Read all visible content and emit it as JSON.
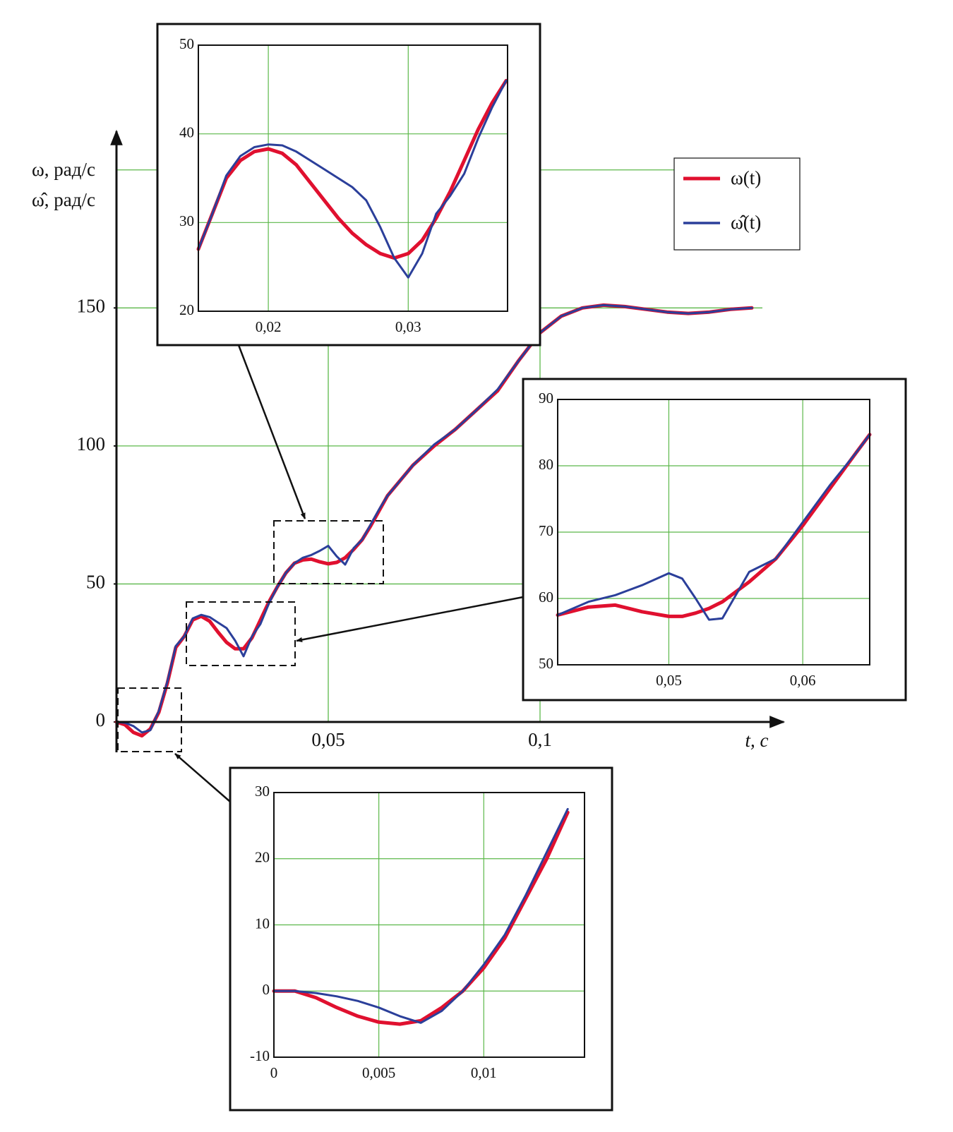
{
  "chart_data": [
    {
      "type": "line",
      "ylabel": [
        "ω, рад/с",
        "ω̂, рад/с"
      ],
      "xlabel": "t, с",
      "xlim": [
        0,
        0.1575
      ],
      "ylim": [
        -11,
        214
      ],
      "xticks": [
        {
          "value": 0.05,
          "label": "0,05"
        },
        {
          "value": 0.1,
          "label": "0,1"
        }
      ],
      "yticks": [
        0,
        50,
        100,
        150
      ],
      "grid_y": [
        50,
        100,
        150,
        200
      ],
      "grid_color": "#5cb84a",
      "legend": "upper right",
      "x": [
        0,
        0.002,
        0.004,
        0.006,
        0.008,
        0.01,
        0.012,
        0.014,
        0.016,
        0.018,
        0.02,
        0.022,
        0.024,
        0.026,
        0.028,
        0.03,
        0.032,
        0.034,
        0.036,
        0.038,
        0.04,
        0.042,
        0.044,
        0.046,
        0.048,
        0.05,
        0.052,
        0.054,
        0.056,
        0.058,
        0.06,
        0.062,
        0.064,
        0.07,
        0.075,
        0.08,
        0.085,
        0.09,
        0.095,
        0.1,
        0.105,
        0.11,
        0.115,
        0.12,
        0.125,
        0.13,
        0.135,
        0.14,
        0.145,
        0.15
      ],
      "series": [
        {
          "name": "ω(t)",
          "color": "#e0102f",
          "values": [
            0,
            -1,
            -3.8,
            -5,
            -2.5,
            3.5,
            14,
            27,
            31,
            37,
            38.3,
            36.5,
            32.5,
            28.8,
            26.5,
            26.5,
            30.5,
            37,
            43.5,
            49,
            54,
            57.5,
            58.7,
            59,
            58,
            57.3,
            57.8,
            59.5,
            62.5,
            66,
            71,
            76.5,
            82,
            93,
            100,
            106,
            113,
            120,
            131,
            141,
            147,
            150,
            151,
            150.5,
            149.5,
            148.5,
            148,
            148.5,
            149.5,
            150
          ]
        },
        {
          "name": "ω̂(t)",
          "color": "#2b3f9a",
          "values": [
            0,
            -0.3,
            -1.5,
            -3.8,
            -3,
            4,
            14.5,
            27.5,
            31,
            37.5,
            38.8,
            38,
            36,
            34,
            29.5,
            23.8,
            31,
            35.5,
            43,
            49,
            54,
            57.5,
            59.5,
            60.5,
            62,
            63.8,
            60,
            57,
            63,
            66,
            71.5,
            77,
            82,
            93,
            100.5,
            106,
            113,
            120.5,
            131,
            141,
            147,
            150,
            151,
            150.5,
            149.5,
            148.5,
            148,
            148.5,
            149.5,
            150
          ]
        }
      ]
    },
    {
      "type": "line",
      "xlim": [
        0.015,
        0.0371
      ],
      "ylim": [
        20,
        50
      ],
      "xticks": [
        {
          "value": 0.02,
          "label": "0,02"
        },
        {
          "value": 0.03,
          "label": "0,03"
        }
      ],
      "yticks": [
        20,
        30,
        40,
        50
      ],
      "grid_color": "#5cb84a",
      "x": [
        0.015,
        0.016,
        0.017,
        0.018,
        0.019,
        0.02,
        0.021,
        0.022,
        0.023,
        0.024,
        0.025,
        0.026,
        0.027,
        0.028,
        0.029,
        0.03,
        0.031,
        0.032,
        0.033,
        0.034,
        0.035,
        0.036,
        0.037
      ],
      "series": [
        {
          "color": "#e0102f",
          "values": [
            27,
            31,
            35,
            37,
            38,
            38.3,
            37.8,
            36.5,
            34.5,
            32.5,
            30.5,
            28.8,
            27.5,
            26.5,
            26,
            26.5,
            28,
            30.5,
            33.5,
            37,
            40.5,
            43.5,
            46
          ]
        },
        {
          "color": "#2b3f9a",
          "values": [
            27,
            31,
            35.3,
            37.5,
            38.5,
            38.8,
            38.7,
            38,
            37,
            36,
            35,
            34,
            32.5,
            29.5,
            26,
            23.8,
            26.5,
            31,
            33,
            35.5,
            39.5,
            43,
            46
          ]
        }
      ]
    },
    {
      "type": "line",
      "xlim": [
        0.0417,
        0.065
      ],
      "ylim": [
        50,
        90
      ],
      "xticks": [
        {
          "value": 0.05,
          "label": "0,05"
        },
        {
          "value": 0.06,
          "label": "0,06"
        }
      ],
      "yticks": [
        50,
        60,
        70,
        80,
        90
      ],
      "grid_color": "#5cb84a",
      "x": [
        0.0417,
        0.044,
        0.046,
        0.048,
        0.05,
        0.051,
        0.052,
        0.053,
        0.054,
        0.056,
        0.058,
        0.06,
        0.062,
        0.064,
        0.065
      ],
      "series": [
        {
          "color": "#e0102f",
          "values": [
            57.5,
            58.7,
            59,
            58,
            57.3,
            57.3,
            57.8,
            58.5,
            59.5,
            62.5,
            66,
            71,
            76.5,
            82,
            84.7
          ]
        },
        {
          "color": "#2b3f9a",
          "values": [
            57.5,
            59.5,
            60.5,
            62,
            63.8,
            63,
            60,
            56.8,
            57,
            64,
            66,
            71.5,
            77,
            82,
            84.7
          ]
        }
      ]
    },
    {
      "type": "line",
      "xlim": [
        0,
        0.0148
      ],
      "ylim": [
        -10,
        30
      ],
      "xticks": [
        0,
        {
          "value": 0.005,
          "label": "0,005"
        },
        {
          "value": 0.01,
          "label": "0,01"
        }
      ],
      "yticks": [
        -10,
        0,
        10,
        20,
        30
      ],
      "grid_color": "#5cb84a",
      "x": [
        0,
        0.001,
        0.002,
        0.003,
        0.004,
        0.005,
        0.006,
        0.007,
        0.008,
        0.009,
        0.01,
        0.011,
        0.012,
        0.013,
        0.014
      ],
      "series": [
        {
          "color": "#e0102f",
          "values": [
            0,
            0,
            -1,
            -2.5,
            -3.8,
            -4.7,
            -5,
            -4.5,
            -2.5,
            0,
            3.5,
            8,
            14,
            20,
            27
          ]
        },
        {
          "color": "#2b3f9a",
          "values": [
            0,
            0,
            -0.3,
            -0.8,
            -1.5,
            -2.5,
            -3.8,
            -4.8,
            -3,
            0,
            4,
            8.5,
            14.5,
            21,
            27.5
          ]
        }
      ]
    }
  ]
}
